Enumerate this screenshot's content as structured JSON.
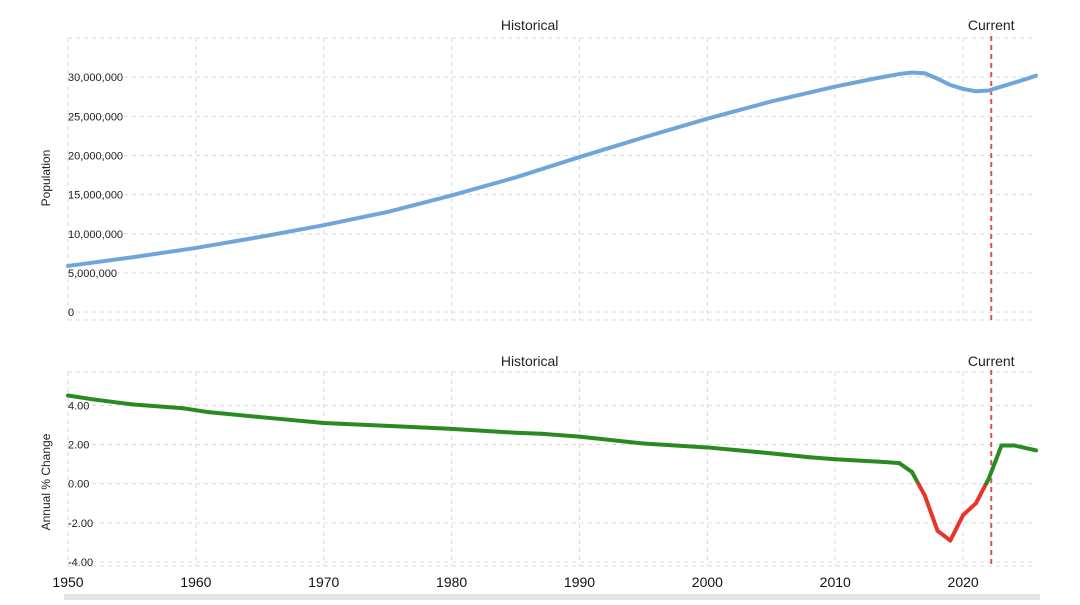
{
  "chart_data": [
    {
      "type": "line",
      "ylabel": "Population",
      "section_labels": {
        "historical": "Historical",
        "current": "Current"
      },
      "x_ticks": [
        1950,
        1960,
        1970,
        1980,
        1990,
        2000,
        2010,
        2020
      ],
      "xlim": [
        1950,
        2025.7
      ],
      "ylim": [
        -1000000,
        35000000
      ],
      "y_ticks": [
        {
          "value": 0,
          "label": "0"
        },
        {
          "value": 5000000,
          "label": "5,000,000"
        },
        {
          "value": 10000000,
          "label": "10,000,000"
        },
        {
          "value": 15000000,
          "label": "15,000,000"
        },
        {
          "value": 20000000,
          "label": "20,000,000"
        },
        {
          "value": 25000000,
          "label": "25,000,000"
        },
        {
          "value": 30000000,
          "label": "30,000,000"
        }
      ],
      "current_year": 2022.2,
      "line_color": "#6fa6d9",
      "current_line_color": "#d9534f",
      "grid": true,
      "series": [
        {
          "x": [
            1950,
            1955,
            1960,
            1965,
            1970,
            1975,
            1980,
            1985,
            1990,
            1995,
            2000,
            2005,
            2010,
            2013,
            2015,
            2016,
            2017,
            2018,
            2019,
            2020,
            2021,
            2022,
            2023,
            2024,
            2025,
            2025.7
          ],
          "values": [
            5900000,
            7000000,
            8200000,
            9600000,
            11100000,
            12800000,
            14900000,
            17200000,
            19800000,
            22300000,
            24700000,
            26900000,
            28800000,
            29800000,
            30400000,
            30600000,
            30500000,
            29800000,
            29000000,
            28500000,
            28200000,
            28300000,
            28800000,
            29300000,
            29800000,
            30200000
          ]
        }
      ]
    },
    {
      "type": "line",
      "ylabel": "Annual % Change",
      "section_labels": {
        "historical": "Historical",
        "current": "Current"
      },
      "x_ticks": [
        1950,
        1960,
        1970,
        1980,
        1990,
        2000,
        2010,
        2020
      ],
      "xlim": [
        1950,
        2025.7
      ],
      "ylim": [
        -4.2,
        5.7
      ],
      "y_ticks": [
        {
          "value": -4,
          "label": "-4.00"
        },
        {
          "value": -2,
          "label": "-2.00"
        },
        {
          "value": 0,
          "label": "0.00"
        },
        {
          "value": 2,
          "label": "2.00"
        },
        {
          "value": 4,
          "label": "4.00"
        }
      ],
      "current_year": 2022.2,
      "positive_color": "#2a8a22",
      "negative_color": "#e8342b",
      "current_line_color": "#d9534f",
      "grid": true,
      "series": [
        {
          "x": [
            1950,
            1952,
            1955,
            1959,
            1961,
            1965,
            1970,
            1975,
            1980,
            1985,
            1987,
            1990,
            1995,
            2000,
            2005,
            2008,
            2010,
            2014,
            2015,
            2016,
            2017,
            2018,
            2019,
            2020,
            2021,
            2022,
            2023,
            2024,
            2025.7
          ],
          "values": [
            4.5,
            4.3,
            4.05,
            3.85,
            3.65,
            3.4,
            3.1,
            2.95,
            2.8,
            2.6,
            2.55,
            2.4,
            2.05,
            1.85,
            1.55,
            1.35,
            1.25,
            1.1,
            1.05,
            0.6,
            -0.6,
            -2.4,
            -2.9,
            -1.6,
            -1.0,
            0.25,
            1.95,
            1.95,
            1.7
          ]
        }
      ]
    }
  ]
}
